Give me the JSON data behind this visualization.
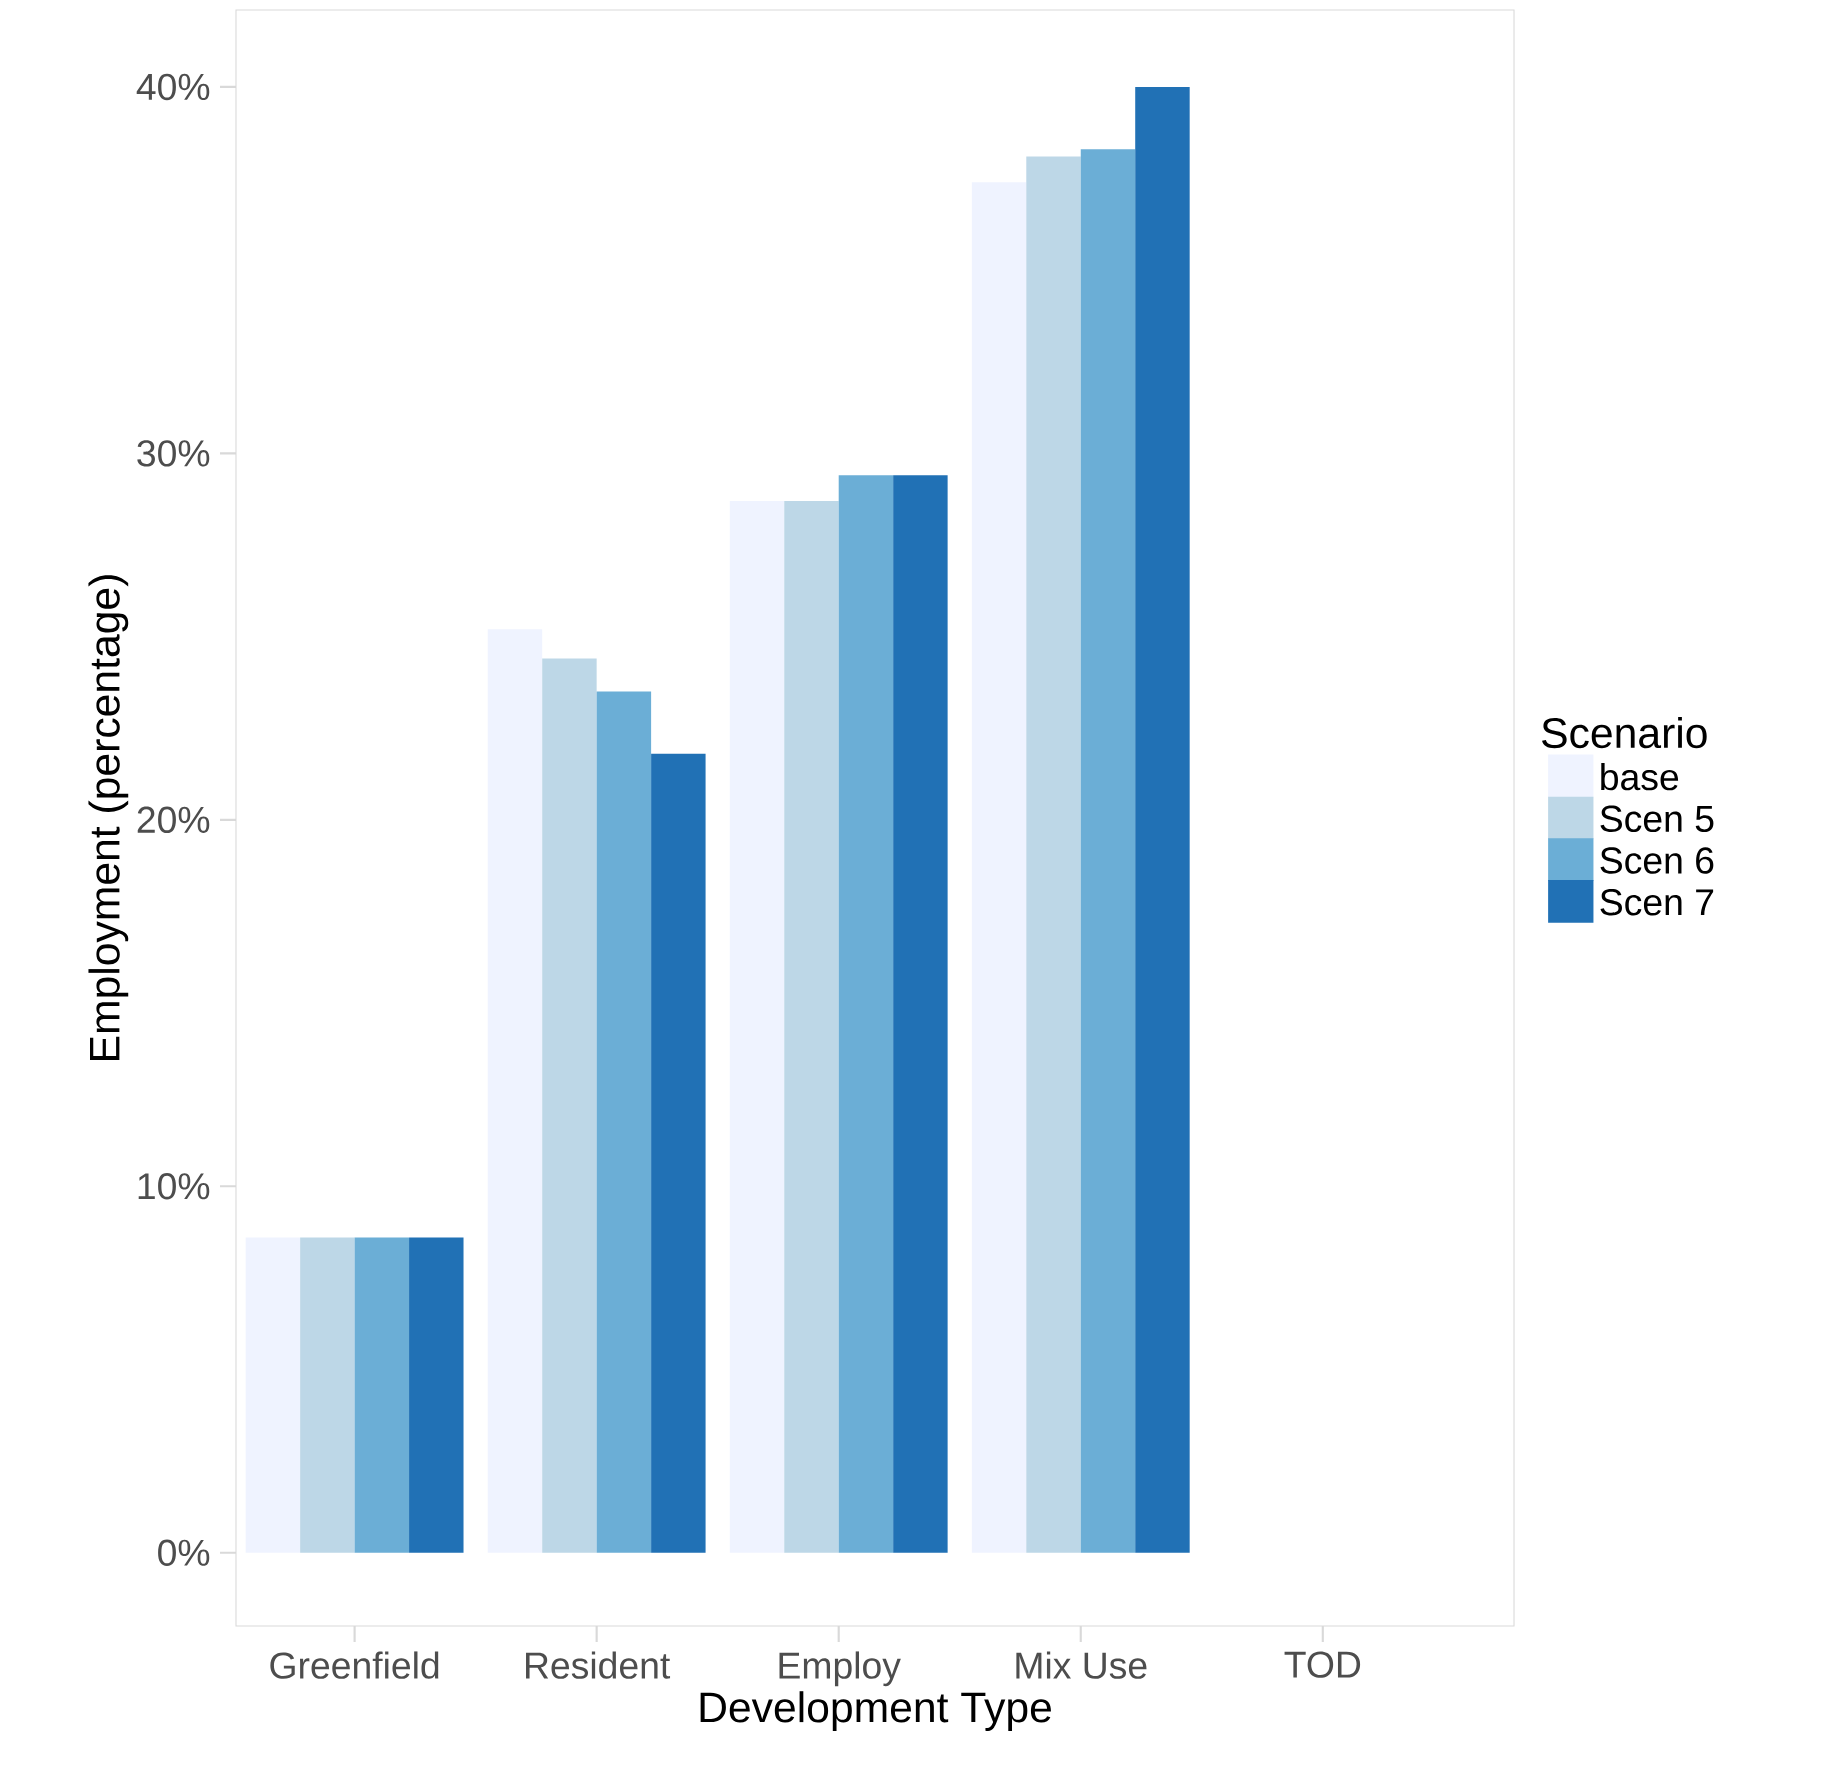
{
  "chart_data": {
    "type": "bar",
    "xlabel": "Development Type",
    "ylabel": "Employment (percentage)",
    "legend_title": "Scenario",
    "legend": "right",
    "grid": false,
    "categories": [
      "Greenfield",
      "Resident",
      "Employ",
      "Mix Use",
      "TOD"
    ],
    "series": [
      {
        "name": "base",
        "color": "#eff3ff",
        "values": [
          8.6,
          25.2,
          28.7,
          37.4,
          0
        ]
      },
      {
        "name": "Scen 5",
        "color": "#bdd7e7",
        "values": [
          8.6,
          24.4,
          28.7,
          38.1,
          0
        ]
      },
      {
        "name": "Scen 6",
        "color": "#6baed6",
        "values": [
          8.6,
          23.5,
          29.4,
          38.3,
          0
        ]
      },
      {
        "name": "Scen 7",
        "color": "#2171b5",
        "values": [
          8.6,
          21.8,
          29.4,
          40.0,
          0
        ]
      }
    ],
    "ylim": [
      -2,
      42.1
    ],
    "yticks": [
      {
        "value": 0,
        "label": "0%"
      },
      {
        "value": 10,
        "label": "10%"
      },
      {
        "value": 20,
        "label": "20%"
      },
      {
        "value": 30,
        "label": "30%"
      },
      {
        "value": 40,
        "label": "40%"
      }
    ]
  }
}
